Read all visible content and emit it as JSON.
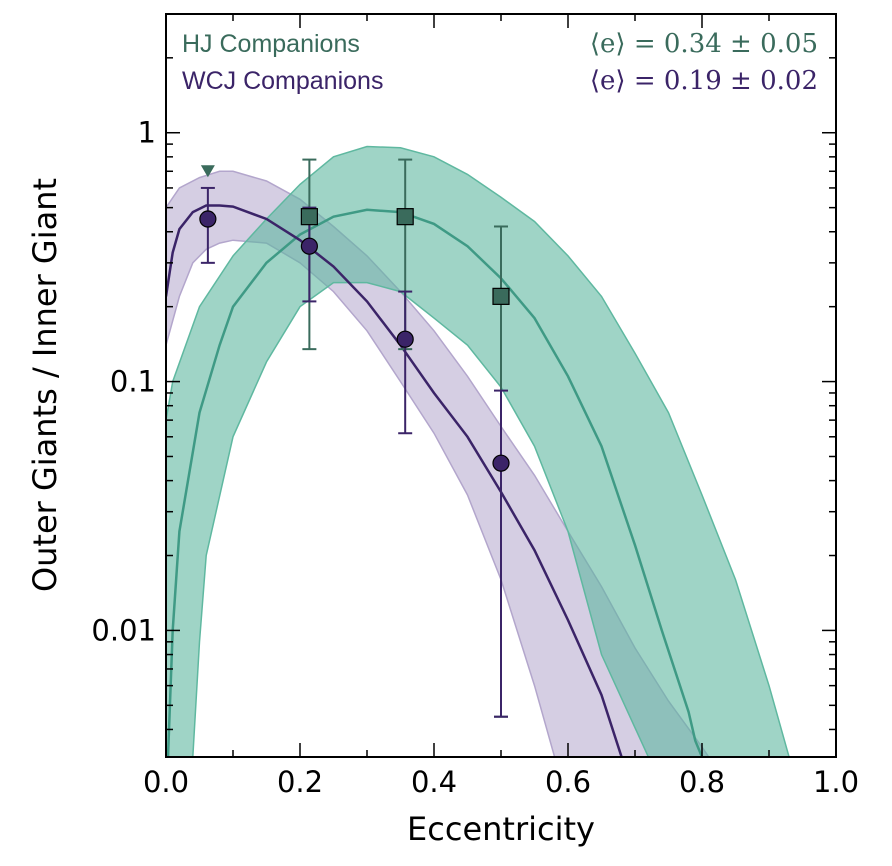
{
  "chart_data": {
    "type": "line",
    "title": "",
    "xlabel": "Eccentricity",
    "ylabel": "Outer Giants / Inner Giant",
    "xlim": [
      0.0,
      1.0
    ],
    "ylim": [
      0.0031,
      3.0
    ],
    "yscale": "log",
    "grid": false,
    "x_ticks": [
      "0.0",
      "0.2",
      "0.4",
      "0.6",
      "0.8",
      "1.0"
    ],
    "y_ticks": [
      "0.01",
      "0.1",
      "1"
    ],
    "legend_placement": "top-left",
    "colors": {
      "hj": "#3a6b5c",
      "hj_line": "#3f9a85",
      "hj_band": "#5fb8a0",
      "wcj": "#3b2468",
      "wcj_band": "#b3a6cc"
    },
    "legend": [
      {
        "label": "HJ Companions",
        "annotation": "⟨e⟩ = 0.34 ± 0.05"
      },
      {
        "label": "WCJ Companions",
        "annotation": "⟨e⟩ = 0.19 ± 0.02"
      }
    ],
    "series": [
      {
        "name": "HJ Companions",
        "marker": "square",
        "points": [
          {
            "x": 0.214,
            "y": 0.46,
            "ylo": 0.135,
            "yhi": 0.78
          },
          {
            "x": 0.357,
            "y": 0.46,
            "ylo": 0.135,
            "yhi": 0.78
          },
          {
            "x": 0.5,
            "y": 0.22,
            "ylo": 0.0045,
            "yhi": 0.42
          }
        ],
        "upper_limits": [
          {
            "x": 0.0625,
            "y": 0.7
          }
        ],
        "model": {
          "x": [
            0.003,
            0.01,
            0.02,
            0.05,
            0.08,
            0.1,
            0.15,
            0.2,
            0.25,
            0.3,
            0.35,
            0.4,
            0.45,
            0.5,
            0.55,
            0.6,
            0.65,
            0.7,
            0.74,
            0.78,
            0.79,
            0.8
          ],
          "y": [
            0.0031,
            0.01,
            0.025,
            0.075,
            0.14,
            0.2,
            0.3,
            0.39,
            0.46,
            0.49,
            0.48,
            0.43,
            0.35,
            0.26,
            0.18,
            0.105,
            0.055,
            0.022,
            0.01,
            0.0047,
            0.0036,
            0.0031
          ],
          "band_lo": [
            0.0031,
            0.0031,
            0.0031,
            0.0031,
            0.009,
            0.02,
            0.06,
            0.12,
            0.2,
            0.25,
            0.25,
            0.23,
            0.18,
            0.14,
            0.095,
            0.055,
            0.025,
            0.008,
            0.0031
          ],
          "band_lo_x": [
            0.0,
            0.01,
            0.02,
            0.04,
            0.05,
            0.06,
            0.1,
            0.15,
            0.2,
            0.25,
            0.3,
            0.35,
            0.4,
            0.45,
            0.5,
            0.55,
            0.6,
            0.65,
            0.72
          ],
          "band_hi_x": [
            0.0,
            0.01,
            0.05,
            0.1,
            0.15,
            0.2,
            0.25,
            0.3,
            0.35,
            0.4,
            0.45,
            0.5,
            0.55,
            0.6,
            0.65,
            0.7,
            0.75,
            0.8,
            0.85,
            0.9,
            0.93
          ],
          "band_hi": [
            0.07,
            0.1,
            0.2,
            0.32,
            0.45,
            0.62,
            0.8,
            0.88,
            0.87,
            0.8,
            0.68,
            0.55,
            0.44,
            0.32,
            0.22,
            0.13,
            0.075,
            0.035,
            0.016,
            0.006,
            0.0031
          ]
        }
      },
      {
        "name": "WCJ Companions",
        "marker": "circle",
        "points": [
          {
            "x": 0.0625,
            "y": 0.45,
            "ylo": 0.3,
            "yhi": 0.6
          },
          {
            "x": 0.214,
            "y": 0.35,
            "ylo": 0.21,
            "yhi": 0.5
          },
          {
            "x": 0.357,
            "y": 0.148,
            "ylo": 0.062,
            "yhi": 0.23
          },
          {
            "x": 0.5,
            "y": 0.047,
            "ylo": 0.0045,
            "yhi": 0.092
          }
        ],
        "model": {
          "x": [
            0.0,
            0.01,
            0.02,
            0.04,
            0.06,
            0.08,
            0.1,
            0.15,
            0.2,
            0.25,
            0.3,
            0.35,
            0.4,
            0.45,
            0.5,
            0.55,
            0.6,
            0.65,
            0.68
          ],
          "y": [
            0.22,
            0.33,
            0.41,
            0.48,
            0.51,
            0.51,
            0.505,
            0.45,
            0.37,
            0.29,
            0.21,
            0.14,
            0.09,
            0.06,
            0.036,
            0.021,
            0.011,
            0.0055,
            0.0031
          ],
          "band_lo_x": [
            0.0,
            0.02,
            0.04,
            0.06,
            0.08,
            0.1,
            0.15,
            0.2,
            0.25,
            0.3,
            0.35,
            0.4,
            0.45,
            0.5,
            0.55,
            0.58
          ],
          "band_lo": [
            0.14,
            0.22,
            0.3,
            0.34,
            0.36,
            0.37,
            0.36,
            0.3,
            0.23,
            0.16,
            0.1,
            0.062,
            0.035,
            0.016,
            0.006,
            0.0031
          ],
          "band_hi_x": [
            0.0,
            0.02,
            0.05,
            0.08,
            0.1,
            0.15,
            0.2,
            0.25,
            0.3,
            0.35,
            0.4,
            0.45,
            0.5,
            0.55,
            0.6,
            0.65,
            0.7,
            0.75,
            0.8,
            0.81
          ],
          "band_hi": [
            0.5,
            0.6,
            0.66,
            0.7,
            0.7,
            0.64,
            0.54,
            0.42,
            0.32,
            0.23,
            0.16,
            0.105,
            0.066,
            0.042,
            0.025,
            0.015,
            0.0085,
            0.0052,
            0.0034,
            0.0031
          ]
        }
      }
    ]
  }
}
